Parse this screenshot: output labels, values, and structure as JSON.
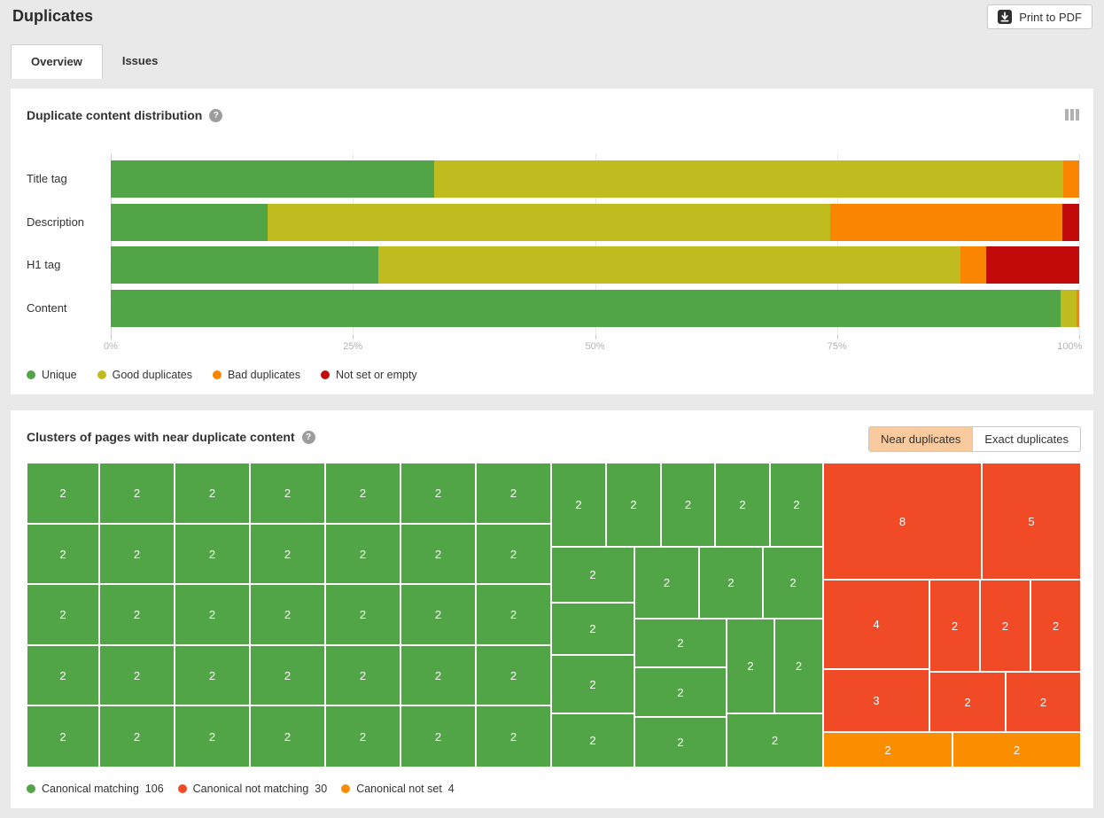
{
  "header": {
    "title": "Duplicates",
    "print_button_label": "Print to PDF"
  },
  "tabs": [
    {
      "label": "Overview",
      "active": true
    },
    {
      "label": "Issues",
      "active": false
    }
  ],
  "icons": {
    "help_glyph": "?"
  },
  "distribution": {
    "title": "Duplicate content distribution"
  },
  "clusters": {
    "title": "Clusters of pages with near duplicate content",
    "toggle": [
      {
        "label": "Near duplicates",
        "active": true
      },
      {
        "label": "Exact duplicates",
        "active": false
      }
    ],
    "active_toggle_color": "#f8ca9d"
  },
  "chart_data": [
    {
      "type": "bar",
      "stacked": true,
      "orientation": "horizontal",
      "title": "Duplicate content distribution",
      "categories": [
        "Title tag",
        "Description",
        "H1 tag",
        "Content"
      ],
      "series": [
        {
          "name": "Unique",
          "color": "#52a546",
          "values": [
            33.4,
            16.2,
            27.6,
            98.1
          ]
        },
        {
          "name": "Good duplicates",
          "color": "#c0bc1f",
          "values": [
            65.0,
            58.1,
            60.1,
            1.6
          ]
        },
        {
          "name": "Bad duplicates",
          "color": "#fa8500",
          "values": [
            1.6,
            24.0,
            2.7,
            0.3
          ]
        },
        {
          "name": "Not set or empty",
          "color": "#c20a0a",
          "values": [
            0,
            1.7,
            9.6,
            0
          ]
        }
      ],
      "xlim": [
        0,
        100
      ],
      "x_tick_labels": [
        "0%",
        "25%",
        "50%",
        "75%",
        "100%"
      ],
      "unit": "%",
      "grid": true,
      "legend_position": "bottom-left"
    },
    {
      "type": "treemap",
      "title": "Clusters of pages with near duplicate content",
      "mode": "Near duplicates",
      "groups": [
        {
          "key": "g",
          "name": "Canonical matching",
          "color": "#52a546",
          "total": 106
        },
        {
          "key": "r",
          "name": "Canonical not matching",
          "color": "#f14a26",
          "total": 30
        },
        {
          "key": "o",
          "name": "Canonical not set",
          "color": "#fb8d00",
          "total": 4
        }
      ],
      "cells": [
        [
          0,
          0,
          82,
          69,
          "2",
          "g"
        ],
        [
          82,
          0,
          85,
          69,
          "2",
          "g"
        ],
        [
          167,
          0,
          85,
          69,
          "2",
          "g"
        ],
        [
          252,
          0,
          85,
          69,
          "2",
          "g"
        ],
        [
          337,
          0,
          85,
          69,
          "2",
          "g"
        ],
        [
          422,
          0,
          85,
          69,
          "2",
          "g"
        ],
        [
          507,
          0,
          85,
          69,
          "2",
          "g"
        ],
        [
          0,
          69,
          82,
          68,
          "2",
          "g"
        ],
        [
          82,
          69,
          85,
          68,
          "2",
          "g"
        ],
        [
          167,
          69,
          85,
          68,
          "2",
          "g"
        ],
        [
          252,
          69,
          85,
          68,
          "2",
          "g"
        ],
        [
          337,
          69,
          85,
          68,
          "2",
          "g"
        ],
        [
          422,
          69,
          85,
          68,
          "2",
          "g"
        ],
        [
          507,
          69,
          85,
          68,
          "2",
          "g"
        ],
        [
          0,
          137,
          82,
          69,
          "2",
          "g"
        ],
        [
          82,
          137,
          85,
          69,
          "2",
          "g"
        ],
        [
          167,
          137,
          85,
          69,
          "2",
          "g"
        ],
        [
          252,
          137,
          85,
          69,
          "2",
          "g"
        ],
        [
          337,
          137,
          85,
          69,
          "2",
          "g"
        ],
        [
          422,
          137,
          85,
          69,
          "2",
          "g"
        ],
        [
          507,
          137,
          85,
          69,
          "2",
          "g"
        ],
        [
          0,
          206,
          82,
          68,
          "2",
          "g"
        ],
        [
          82,
          206,
          85,
          68,
          "2",
          "g"
        ],
        [
          167,
          206,
          85,
          68,
          "2",
          "g"
        ],
        [
          252,
          206,
          85,
          68,
          "2",
          "g"
        ],
        [
          337,
          206,
          85,
          68,
          "2",
          "g"
        ],
        [
          422,
          206,
          85,
          68,
          "2",
          "g"
        ],
        [
          507,
          206,
          85,
          68,
          "2",
          "g"
        ],
        [
          0,
          274,
          82,
          70,
          "2",
          "g"
        ],
        [
          82,
          274,
          85,
          70,
          "2",
          "g"
        ],
        [
          167,
          274,
          85,
          70,
          "2",
          "g"
        ],
        [
          252,
          274,
          85,
          70,
          "2",
          "g"
        ],
        [
          337,
          274,
          85,
          70,
          "2",
          "g"
        ],
        [
          422,
          274,
          85,
          70,
          "2",
          "g"
        ],
        [
          507,
          274,
          85,
          70,
          "2",
          "g"
        ],
        [
          592,
          0,
          62,
          95,
          "2",
          "g"
        ],
        [
          654,
          0,
          62,
          95,
          "2",
          "g"
        ],
        [
          716,
          0,
          61,
          95,
          "2",
          "g"
        ],
        [
          777,
          0,
          62,
          95,
          "2",
          "g"
        ],
        [
          839,
          0,
          60,
          95,
          "2",
          "g"
        ],
        [
          592,
          95,
          94,
          63,
          "2",
          "g"
        ],
        [
          686,
          95,
          73,
          81,
          "2",
          "g"
        ],
        [
          759,
          95,
          72,
          81,
          "2",
          "g"
        ],
        [
          831,
          95,
          68,
          81,
          "2",
          "g"
        ],
        [
          592,
          158,
          94,
          59,
          "2",
          "g"
        ],
        [
          686,
          176,
          104,
          55,
          "2",
          "g"
        ],
        [
          790,
          176,
          54,
          107,
          "2",
          "g"
        ],
        [
          844,
          176,
          55,
          107,
          "2",
          "g"
        ],
        [
          592,
          217,
          94,
          66,
          "2",
          "g"
        ],
        [
          686,
          231,
          104,
          56,
          "2",
          "g"
        ],
        [
          592,
          283,
          94,
          61,
          "2",
          "g"
        ],
        [
          686,
          287,
          104,
          57,
          "2",
          "g"
        ],
        [
          790,
          283,
          109,
          61,
          "2",
          "g"
        ],
        [
          899,
          0,
          179,
          132,
          "8",
          "r"
        ],
        [
          1078,
          0,
          112,
          132,
          "5",
          "r"
        ],
        [
          899,
          132,
          120,
          101,
          "4",
          "r"
        ],
        [
          1019,
          132,
          57,
          104,
          "2",
          "r"
        ],
        [
          1076,
          132,
          57,
          104,
          "2",
          "r"
        ],
        [
          1133,
          132,
          57,
          104,
          "2",
          "r"
        ],
        [
          899,
          233,
          120,
          71,
          "3",
          "r"
        ],
        [
          1019,
          236,
          86,
          68,
          "2",
          "r"
        ],
        [
          1105,
          236,
          85,
          68,
          "2",
          "r"
        ],
        [
          899,
          304,
          146,
          40,
          "2",
          "o"
        ],
        [
          1045,
          304,
          145,
          40,
          "2",
          "o"
        ]
      ]
    }
  ]
}
